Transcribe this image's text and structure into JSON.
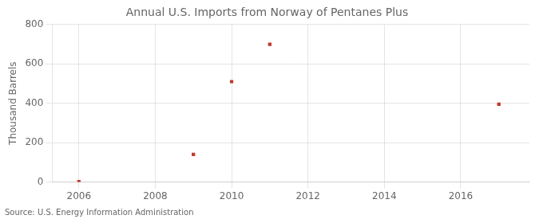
{
  "chart_data": {
    "type": "scatter",
    "title": "Annual U.S. Imports from Norway of Pentanes Plus",
    "ylabel": "Thousand Barrels",
    "annotation": "Source: U.S. Energy Information Administration",
    "x": [
      2006,
      2009,
      2010,
      2011,
      2017
    ],
    "values": [
      2,
      140,
      510,
      700,
      395
    ],
    "color": "#c0392b",
    "marker": "square",
    "xlim": [
      2005.3,
      2017.8
    ],
    "ylim": [
      0,
      800
    ],
    "xticks": [
      2006,
      2008,
      2010,
      2012,
      2014,
      2016
    ],
    "yticks": [
      0,
      200,
      400,
      600,
      800
    ],
    "grid": true
  }
}
